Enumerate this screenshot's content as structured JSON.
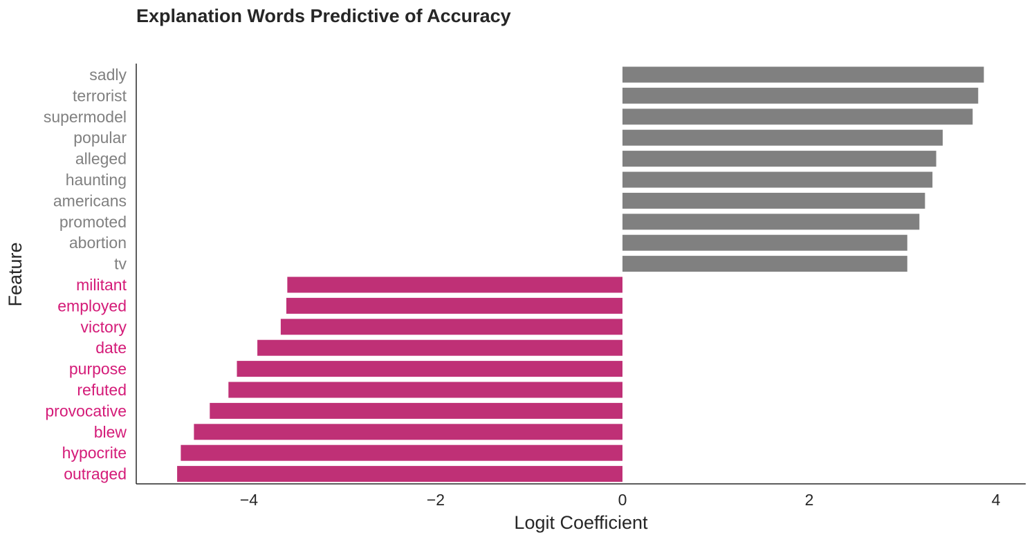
{
  "chart_data": {
    "type": "bar",
    "orientation": "horizontal",
    "title": "Explanation Words Predictive of Accuracy",
    "xlabel": "Logit Coefficient",
    "ylabel": "Feature",
    "xlim": [
      -5.2,
      4.3
    ],
    "xticks": [
      {
        "value": -4,
        "label": "−4"
      },
      {
        "value": -2,
        "label": "−2"
      },
      {
        "value": 0,
        "label": "0"
      },
      {
        "value": 2,
        "label": "2"
      },
      {
        "value": 4,
        "label": "4"
      }
    ],
    "grid": false,
    "colors": {
      "positive": "#808080",
      "negative": "#bf3076",
      "positive_label": "#808080",
      "negative_label": "#d41b78"
    },
    "categories": [
      "sadly",
      "terrorist",
      "supermodel",
      "popular",
      "alleged",
      "haunting",
      "americans",
      "promoted",
      "abortion",
      "tv",
      "militant",
      "employed",
      "victory",
      "date",
      "purpose",
      "refuted",
      "provocative",
      "blew",
      "hypocrite",
      "outraged"
    ],
    "values": [
      3.87,
      3.81,
      3.75,
      3.43,
      3.36,
      3.32,
      3.24,
      3.18,
      3.05,
      3.05,
      -3.59,
      -3.6,
      -3.66,
      -3.91,
      -4.13,
      -4.22,
      -4.42,
      -4.59,
      -4.73,
      -4.77
    ]
  }
}
